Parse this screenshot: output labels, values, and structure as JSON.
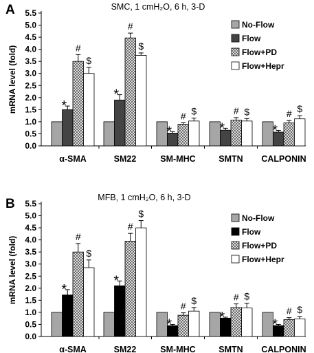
{
  "chart_data": [
    {
      "type": "bar",
      "panel_label": "A",
      "title": "SMC, 1 cmH₂O, 6 h, 3-D",
      "ylabel": "mRNA level (fold)",
      "xlabel": "",
      "ylim": [
        0,
        5.5
      ],
      "yticks": [
        "0.0",
        "0.5",
        "1.0",
        "1.5",
        "2.0",
        "2.5",
        "3.0",
        "3.5",
        "4.0",
        "4.5",
        "5.0",
        "5.5"
      ],
      "categories": [
        "α-SMA",
        "SM22",
        "SM-MHC",
        "SMTN",
        "CALPONIN"
      ],
      "grid": false,
      "legend_position": "right",
      "series": [
        {
          "name": "No-Flow",
          "values": [
            1.0,
            1.0,
            1.0,
            1.0,
            1.0
          ],
          "errors": [
            0,
            0,
            0,
            0,
            0
          ],
          "marks": [
            "",
            "",
            "",
            "",
            ""
          ]
        },
        {
          "name": "Flow",
          "values": [
            1.5,
            1.9,
            0.53,
            0.65,
            0.57
          ],
          "errors": [
            0.15,
            0.22,
            0.06,
            0.08,
            0.07
          ],
          "marks": [
            "*",
            "*",
            "*",
            "*",
            "*"
          ]
        },
        {
          "name": "Flow+PD",
          "values": [
            3.5,
            4.47,
            0.9,
            1.07,
            0.95
          ],
          "errors": [
            0.28,
            0.2,
            0.06,
            0.1,
            0.1
          ],
          "marks": [
            "#",
            "#",
            "#",
            "#",
            "#"
          ]
        },
        {
          "name": "Flow+Hepr",
          "values": [
            3.0,
            3.75,
            1.03,
            1.03,
            1.12
          ],
          "errors": [
            0.25,
            0.1,
            0.12,
            0.1,
            0.13
          ],
          "marks": [
            "$",
            "$",
            "$",
            "$",
            "$"
          ]
        }
      ]
    },
    {
      "type": "bar",
      "panel_label": "B",
      "title": "MFB, 1 cmH₂O, 6 h, 3-D",
      "ylabel": "mRNA level (fold)",
      "xlabel": "",
      "ylim": [
        0,
        5.5
      ],
      "yticks": [
        "0.0",
        "0.5",
        "1.0",
        "1.5",
        "2.0",
        "2.5",
        "3.0",
        "3.5",
        "4.0",
        "4.5",
        "5.0",
        "5.5"
      ],
      "categories": [
        "α-SMA",
        "SM22",
        "SM-MHC",
        "SMTN",
        "CALPONIN"
      ],
      "grid": false,
      "legend_position": "right",
      "series": [
        {
          "name": "No-Flow",
          "values": [
            1.0,
            1.0,
            1.0,
            1.0,
            1.0
          ],
          "errors": [
            0,
            0,
            0,
            0,
            0
          ],
          "marks": [
            "",
            "",
            "",
            "",
            ""
          ]
        },
        {
          "name": "Flow",
          "values": [
            1.72,
            2.1,
            0.45,
            0.76,
            0.45
          ],
          "errors": [
            0.22,
            0.2,
            0.05,
            0.04,
            0.05
          ],
          "marks": [
            "*",
            "*",
            "*",
            "*",
            "*"
          ]
        },
        {
          "name": "Flow+PD",
          "values": [
            3.5,
            3.95,
            0.88,
            1.2,
            0.7
          ],
          "errors": [
            0.35,
            0.32,
            0.1,
            0.15,
            0.08
          ],
          "marks": [
            "#",
            "#",
            "#",
            "#",
            "#"
          ]
        },
        {
          "name": "Flow+Hepr",
          "values": [
            2.85,
            4.5,
            1.05,
            1.18,
            0.73
          ],
          "errors": [
            0.32,
            0.3,
            0.15,
            0.2,
            0.1
          ],
          "marks": [
            "$",
            "$",
            "$",
            "$",
            "$"
          ]
        }
      ]
    }
  ],
  "styles": {
    "series_fills": [
      "#a6a6a6",
      "#444444",
      "crosshatch",
      "#ffffff"
    ],
    "series_fills_panel_b": [
      "#a6a6a6",
      "#000000",
      "crosshatch",
      "#ffffff"
    ],
    "axis_color": "#000000",
    "bar_stroke": "#000000"
  }
}
